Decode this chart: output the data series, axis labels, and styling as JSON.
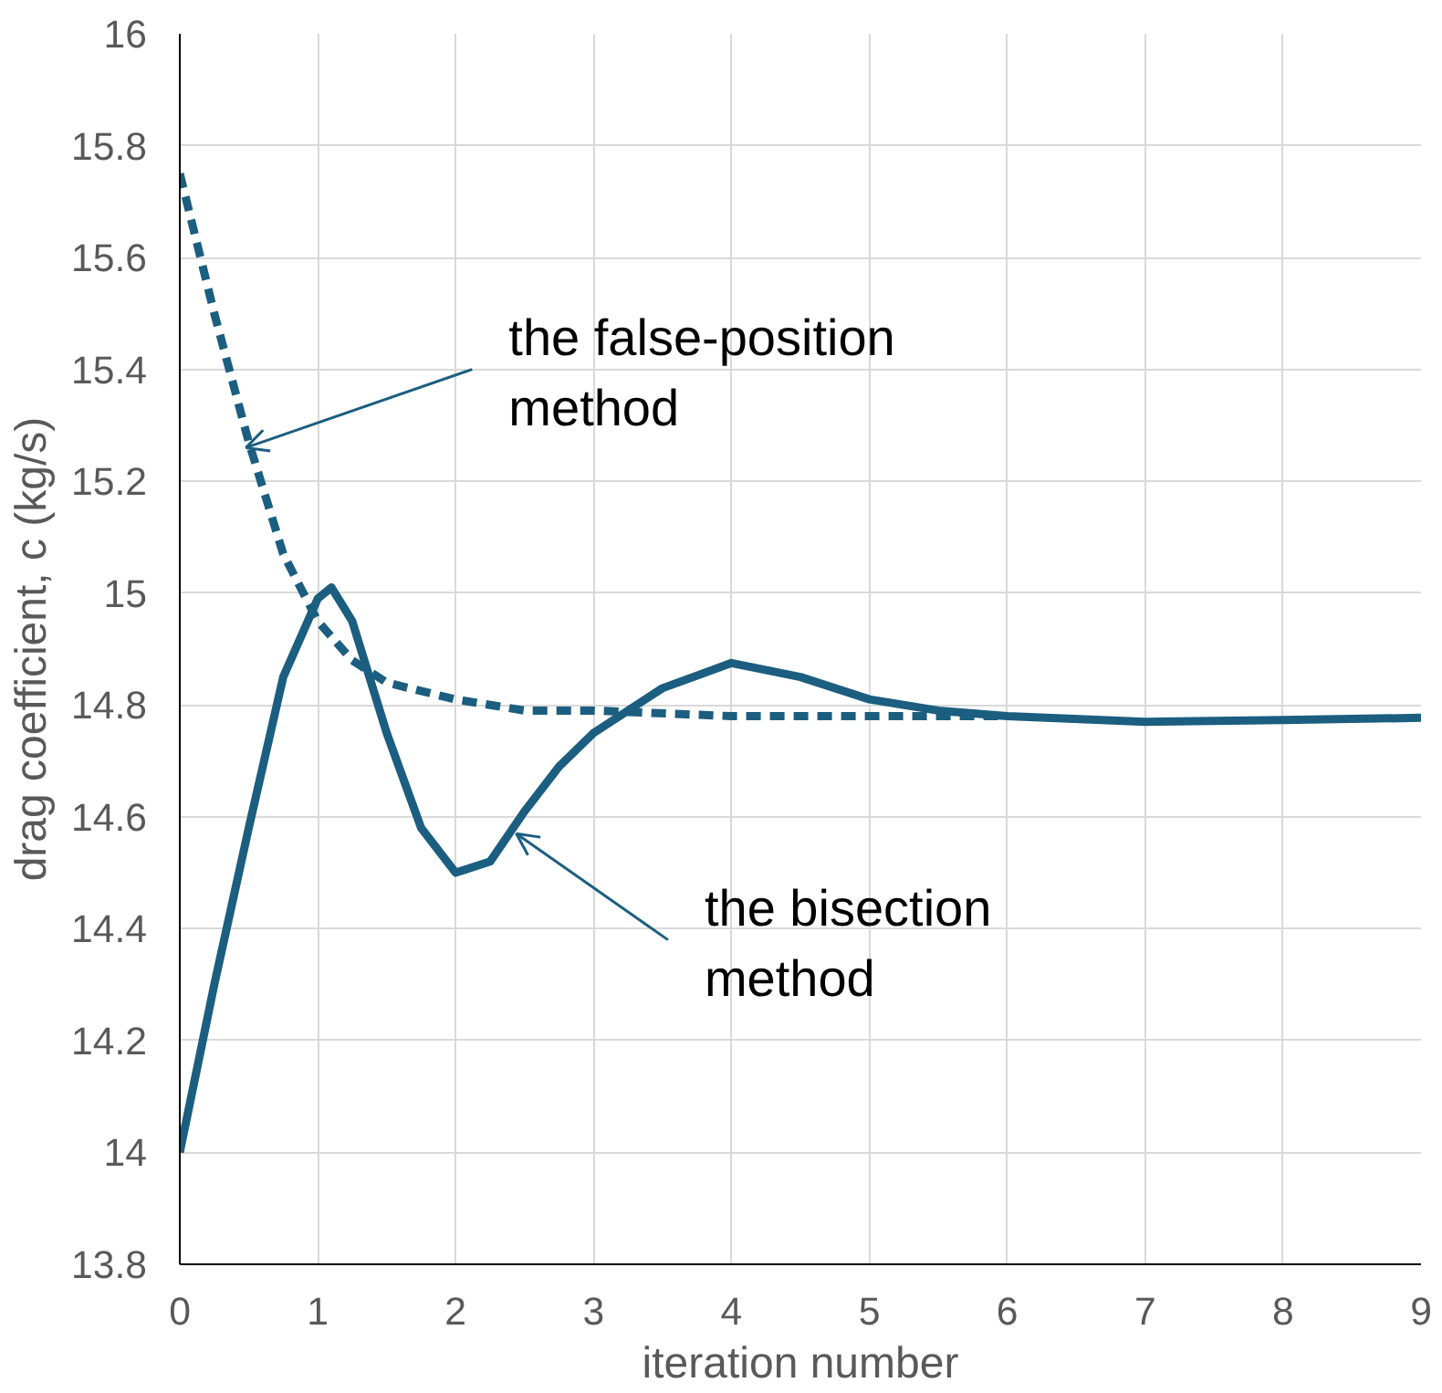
{
  "chart_data": {
    "type": "line",
    "xlabel": "iteration number",
    "ylabel": "drag coefficient, c (kg/s)",
    "series": [
      {
        "color": "#1b5e80",
        "line_style": "solid",
        "x": [
          0,
          0.25,
          0.5,
          0.75,
          1,
          1.1,
          1.25,
          1.5,
          1.75,
          2,
          2.25,
          2.5,
          2.75,
          3,
          3.5,
          4,
          4.5,
          5,
          5.5,
          6,
          7,
          8,
          9
        ],
        "values": [
          14.0,
          14.3,
          14.58,
          14.85,
          14.99,
          15.01,
          14.95,
          14.75,
          14.58,
          14.5,
          14.52,
          14.61,
          14.69,
          14.75,
          14.83,
          14.875,
          14.85,
          14.81,
          14.79,
          14.78,
          14.77,
          14.773,
          14.777
        ]
      },
      {
        "color": "#1b5e80",
        "line_style": "dashed",
        "x": [
          0,
          0.25,
          0.5,
          0.75,
          1,
          1.25,
          1.5,
          2,
          2.5,
          3,
          4,
          6
        ],
        "values": [
          15.75,
          15.5,
          15.27,
          15.07,
          14.95,
          14.88,
          14.84,
          14.81,
          14.79,
          14.79,
          14.78,
          14.78
        ]
      }
    ],
    "xlim": [
      0,
      9
    ],
    "xticks": [
      0,
      1,
      2,
      3,
      4,
      5,
      6,
      7,
      8,
      9
    ],
    "ylim": [
      13.8,
      16
    ],
    "yticks": [
      13.8,
      14,
      14.2,
      14.4,
      14.6,
      14.8,
      15,
      15.2,
      15.4,
      15.6,
      15.8,
      16
    ],
    "grid": true,
    "marker": "none",
    "annotations": [
      {
        "text": "the false-position method",
        "x": 0.48,
        "y": 15.26
      },
      {
        "text": "the bisection method",
        "x": 2.44,
        "y": 14.57
      }
    ]
  }
}
